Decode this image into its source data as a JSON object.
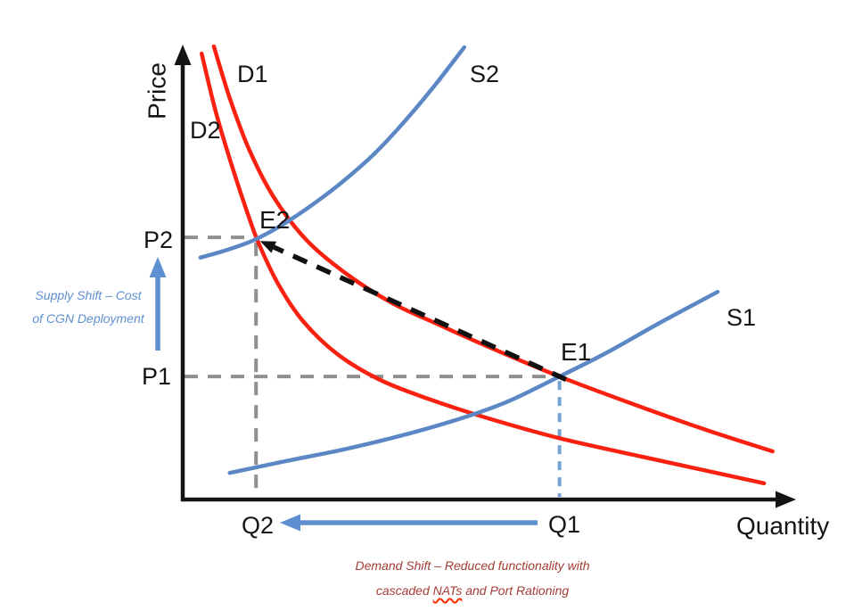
{
  "palette": {
    "demand": "#fa2110",
    "supply": "#5b87c5",
    "axis": "#141414",
    "guide_gray": "#8f8f8f",
    "guide_blue": "#76a3d6",
    "shift_arrow": "#5e8fd0",
    "transition": "#111111",
    "demand_annot": "#a33c34",
    "wavy_underline": "#ff2a00"
  },
  "chart_data": {
    "type": "line",
    "title": "",
    "xlabel": "Quantity",
    "ylabel": "Price",
    "axis_numeric_labels": false,
    "grid": false,
    "series": [
      {
        "name": "D1",
        "role": "demand",
        "color": "#fa2110",
        "points": [
          [
            0.051,
            1.006
          ],
          [
            0.077,
            0.891
          ],
          [
            0.109,
            0.776
          ],
          [
            0.15,
            0.669
          ],
          [
            0.204,
            0.574
          ],
          [
            0.27,
            0.499
          ],
          [
            0.343,
            0.436
          ],
          [
            0.416,
            0.39
          ],
          [
            0.504,
            0.337
          ],
          [
            0.617,
            0.273
          ],
          [
            0.737,
            0.212
          ],
          [
            0.854,
            0.156
          ],
          [
            0.966,
            0.107
          ]
        ]
      },
      {
        "name": "D2",
        "role": "demand",
        "color": "#fa2110",
        "points": [
          [
            0.031,
            0.99
          ],
          [
            0.054,
            0.861
          ],
          [
            0.08,
            0.743
          ],
          [
            0.104,
            0.644
          ],
          [
            0.124,
            0.57
          ],
          [
            0.156,
            0.479
          ],
          [
            0.197,
            0.396
          ],
          [
            0.253,
            0.323
          ],
          [
            0.321,
            0.267
          ],
          [
            0.401,
            0.224
          ],
          [
            0.496,
            0.182
          ],
          [
            0.62,
            0.135
          ],
          [
            0.752,
            0.095
          ],
          [
            0.854,
            0.065
          ],
          [
            0.952,
            0.036
          ]
        ]
      },
      {
        "name": "S1",
        "role": "supply",
        "color": "#5b87c5",
        "points": [
          [
            0.077,
            0.059
          ],
          [
            0.168,
            0.085
          ],
          [
            0.27,
            0.113
          ],
          [
            0.372,
            0.147
          ],
          [
            0.46,
            0.182
          ],
          [
            0.533,
            0.218
          ],
          [
            0.617,
            0.273
          ],
          [
            0.693,
            0.325
          ],
          [
            0.781,
            0.392
          ],
          [
            0.876,
            0.461
          ]
        ]
      },
      {
        "name": "S2",
        "role": "supply",
        "color": "#5b87c5",
        "points": [
          [
            0.029,
            0.537
          ],
          [
            0.077,
            0.556
          ],
          [
            0.12,
            0.578
          ],
          [
            0.168,
            0.614
          ],
          [
            0.215,
            0.657
          ],
          [
            0.263,
            0.707
          ],
          [
            0.314,
            0.768
          ],
          [
            0.365,
            0.842
          ],
          [
            0.416,
            0.925
          ],
          [
            0.461,
            1.004
          ]
        ]
      }
    ],
    "equilibria": [
      {
        "name": "E1",
        "price_label": "P1",
        "quantity_label": "Q1",
        "x": 0.617,
        "y": 0.273
      },
      {
        "name": "E2",
        "price_label": "P2",
        "quantity_label": "Q2",
        "x": 0.12,
        "y": 0.578
      }
    ],
    "transition_arrow": {
      "from": "E1",
      "to": "E2",
      "style": "dashed"
    }
  },
  "annotations": {
    "supply_shift": {
      "line1": "Supply Shift – Cost",
      "line2": "of CGN Deployment",
      "arrow_direction": "up"
    },
    "demand_shift": {
      "line1": "Demand Shift – Reduced functionality with",
      "line2_prefix": "cascaded",
      "line2_highlight": "NATs",
      "line2_suffix": "and Port Rationing",
      "arrow_direction": "left"
    }
  }
}
